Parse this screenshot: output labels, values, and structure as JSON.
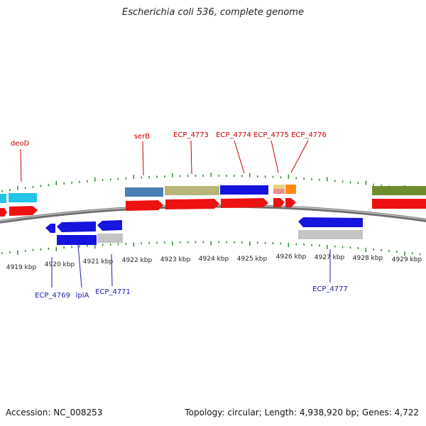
{
  "title": "Escherichia coli 536, complete genome",
  "accession": "Accession: NC_008253",
  "summary": "Topology: circular; Length: 4,938,920 bp; Genes: 4,722",
  "colors": {
    "backbone": "#8a8a8a",
    "tick": "#2e8b2e",
    "forward_label": "#cc0000",
    "reverse_label": "#1a1ab4"
  },
  "kbp_labels": [
    "4919 kbp",
    "4920 kbp",
    "4921 kbp",
    "4922 kbp",
    "4923 kbp",
    "4924 kbp",
    "4925 kbp",
    "4926 kbp",
    "4927 kbp",
    "4928 kbp",
    "4929 kbp"
  ],
  "forward_gene_labels": [
    "deoD",
    "serB",
    "ECP_4773",
    "ECP_4774",
    "ECP_4775",
    "ECP_4776"
  ],
  "reverse_gene_labels": [
    "ECP_4769",
    "lplA",
    "ECP_4771",
    "ECP_4777"
  ]
}
